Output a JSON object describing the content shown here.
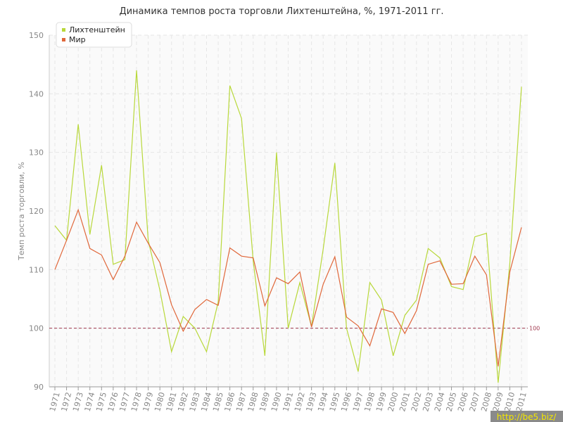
{
  "chart_data": {
    "type": "line",
    "title": "Динамика темпов роста торговли Лихтенштейна, %, 1971-2011 гг.",
    "y_label": "Темп роста торговли, %",
    "categories": [
      "1971",
      "1972",
      "1973",
      "1974",
      "1975",
      "1976",
      "1977",
      "1978",
      "1979",
      "1980",
      "1981",
      "1982",
      "1983",
      "1984",
      "1985",
      "1986",
      "1987",
      "1988",
      "1989",
      "1990",
      "1991",
      "1992",
      "1993",
      "1994",
      "1995",
      "1996",
      "1997",
      "1998",
      "1999",
      "2000",
      "2001",
      "2002",
      "2003",
      "2004",
      "2005",
      "2006",
      "2007",
      "2008",
      "2009",
      "2010",
      "2011"
    ],
    "series": [
      {
        "name": "Лихтенштейн",
        "color": "#b8d83a",
        "values": [
          117.5,
          115,
          134.8,
          116,
          127.8,
          110.9,
          111.7,
          144,
          115,
          106.5,
          96,
          102,
          100,
          96,
          104.5,
          141.4,
          135.8,
          111.5,
          95.3,
          130,
          100,
          107.8,
          100.3,
          113.5,
          128.2,
          100,
          92.6,
          107.8,
          104.8,
          95.3,
          102.2,
          104.8,
          113.6,
          112,
          107.1,
          106.6,
          115.6,
          116.2,
          90.7,
          111,
          141.2
        ]
      },
      {
        "name": "Мир",
        "color": "#e0673a",
        "values": [
          110,
          115,
          120.2,
          113.6,
          112.5,
          108.3,
          112.3,
          118.1,
          114.5,
          111.2,
          104,
          99.5,
          103.2,
          104.9,
          103.9,
          113.7,
          112.3,
          112,
          103.8,
          108.6,
          107.6,
          109.6,
          100.2,
          107.5,
          112.2,
          101.9,
          100.4,
          97,
          103.3,
          102.7,
          99.1,
          103,
          110.9,
          111.5,
          107.5,
          107.6,
          112.3,
          109.1,
          93.5,
          109.6,
          117.2
        ]
      }
    ],
    "ylim": [
      90,
      150
    ],
    "yticks": [
      90,
      100,
      110,
      120,
      130,
      140,
      150
    ],
    "reference_line": 100,
    "reference_color": "#a0384e",
    "grid": true,
    "legend": "top-left",
    "watermark": "http://be5.biz/"
  }
}
